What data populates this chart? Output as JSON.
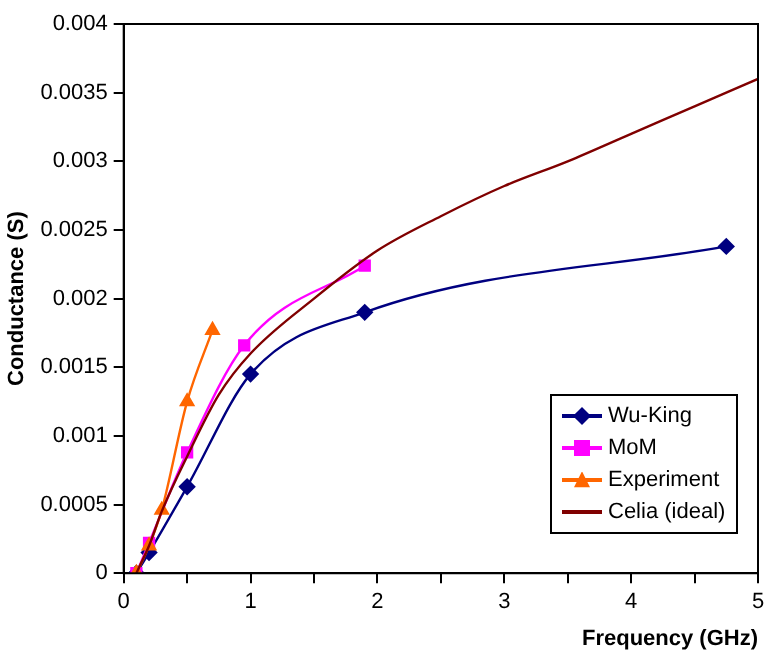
{
  "chart_data": {
    "type": "line",
    "xlabel": "Frequency (GHz)",
    "ylabel": "Conductance (S)",
    "xlim": [
      0,
      5
    ],
    "ylim": [
      0,
      0.004
    ],
    "xticks": [
      0,
      {
        "value": 0.5,
        "label": null
      },
      1,
      {
        "value": 1.5,
        "label": null
      },
      2,
      {
        "value": 2.5,
        "label": null
      },
      3,
      {
        "value": 3.5,
        "label": null
      },
      4,
      {
        "value": 4.5,
        "label": null
      },
      5
    ],
    "yticks": [
      0,
      0.0005,
      0.001,
      0.0015,
      0.002,
      0.0025,
      0.003,
      0.0035,
      0.004
    ],
    "grid": false,
    "legend": "bottom right",
    "series": [
      {
        "name": "Wu-King",
        "color": "#000080",
        "marker": "diamond",
        "x": [
          0.1,
          0.2,
          0.5,
          1.0,
          1.9,
          4.75
        ],
        "values": [
          0,
          0.00015,
          0.00063,
          0.00145,
          0.0019,
          0.00238
        ]
      },
      {
        "name": "MoM",
        "color": "#ff00ff",
        "marker": "square",
        "x": [
          0.1,
          0.2,
          0.5,
          0.95,
          1.9
        ],
        "values": [
          0,
          0.00022,
          0.00088,
          0.00166,
          0.00224
        ]
      },
      {
        "name": "Experiment",
        "color": "#ff6600",
        "marker": "triangle",
        "x": [
          0.1,
          0.2,
          0.3,
          0.5,
          0.7
        ],
        "values": [
          0,
          0.0002,
          0.00046,
          0.00125,
          0.00177
        ]
      },
      {
        "name": "Celia (ideal)",
        "color": "#800000",
        "marker": "none",
        "x": [
          0.1,
          0.2,
          0.3,
          0.5,
          0.75,
          1,
          1.5,
          2,
          2.5,
          3,
          3.5,
          4,
          4.5,
          5
        ],
        "values": [
          0,
          0.0002,
          0.00045,
          0.00085,
          0.0013,
          0.0016,
          0.002,
          0.00235,
          0.0026,
          0.00282,
          0.003,
          0.0032,
          0.0034,
          0.0036
        ]
      }
    ]
  }
}
